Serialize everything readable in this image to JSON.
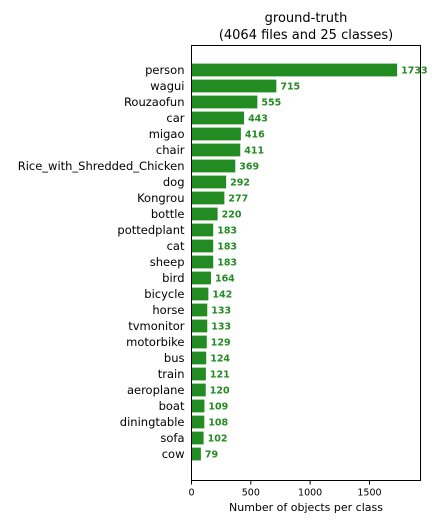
{
  "chart_data": {
    "type": "bar",
    "orientation": "horizontal",
    "title": "ground-truth",
    "subtitle": "(4064 files and 25 classes)",
    "xlabel": "Number of objects per class",
    "ylabel": "",
    "xlim": [
      0,
      1930
    ],
    "xticks": [
      0,
      500,
      1000,
      1500
    ],
    "grid": false,
    "bar_color": "#228b22",
    "label_color": "#228b22",
    "categories": [
      "person",
      "wagui",
      "Rouzaofun",
      "car",
      "migao",
      "chair",
      "Rice_with_Shredded_Chicken",
      "dog",
      "Kongrou",
      "bottle",
      "pottedplant",
      "cat",
      "sheep",
      "bird",
      "bicycle",
      "horse",
      "tvmonitor",
      "motorbike",
      "bus",
      "train",
      "aeroplane",
      "boat",
      "diningtable",
      "sofa",
      "cow"
    ],
    "values": [
      1733,
      715,
      555,
      443,
      416,
      411,
      369,
      292,
      277,
      220,
      183,
      183,
      183,
      164,
      142,
      133,
      133,
      129,
      124,
      121,
      120,
      109,
      108,
      102,
      79
    ]
  }
}
